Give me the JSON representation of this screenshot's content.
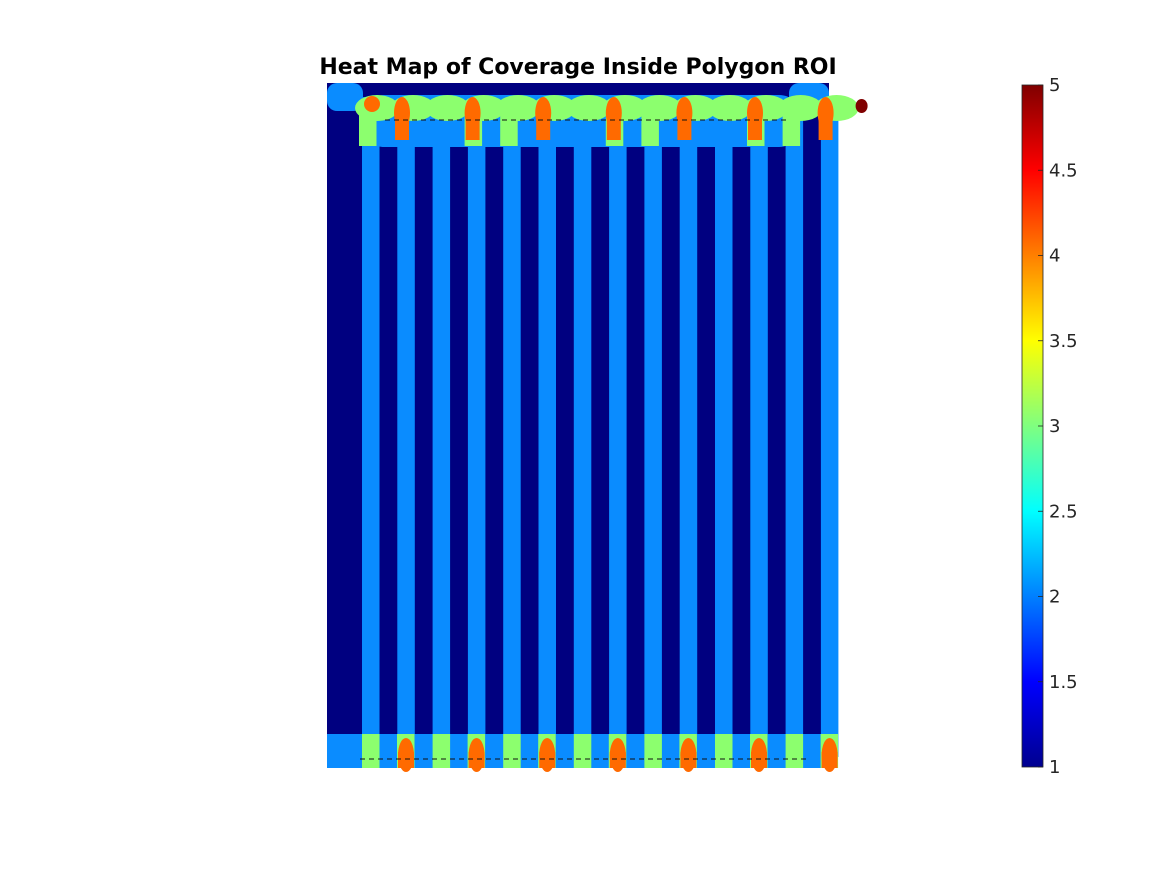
{
  "chart_data": {
    "type": "heatmap",
    "title": "Heat Map of Coverage Inside Polygon ROI",
    "xlabel": "",
    "ylabel": "",
    "colormap": "jet",
    "color_limits": [
      1,
      5
    ],
    "colorbar": {
      "location": "right",
      "ticks": [
        1,
        1.5,
        2,
        2.5,
        3,
        3.5,
        4,
        4.5,
        5
      ],
      "tick_labels": [
        "1",
        "1.5",
        "2",
        "2.5",
        "3",
        "3.5",
        "4",
        "4.5",
        "5"
      ]
    },
    "grid": false,
    "axes_visible": false,
    "stripe_pattern": {
      "description_values": "alternating vertical coverage bands across the polygon",
      "stripe_count": 14,
      "band_values": [
        1,
        2
      ],
      "top_overlap_values": [
        2,
        3,
        4,
        5
      ],
      "bottom_overlap_values": [
        2,
        3,
        4
      ]
    }
  },
  "colors": {
    "coverage_1": "#000080",
    "coverage_2": "#0a8cff",
    "coverage_3": "#8cff6e",
    "coverage_4": "#ff6a00",
    "coverage_5": "#800000",
    "boundary_dash": "#111111"
  }
}
